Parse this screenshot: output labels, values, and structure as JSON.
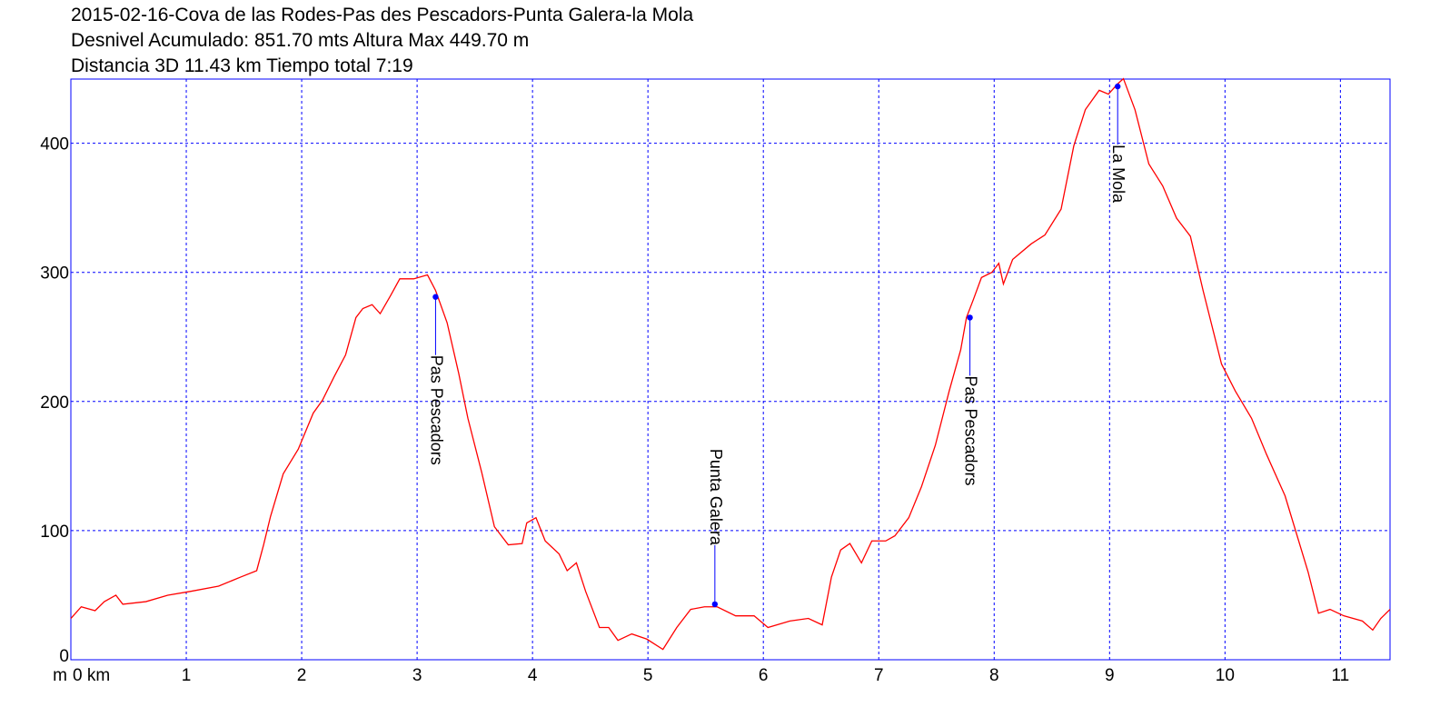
{
  "chart_data": {
    "type": "line",
    "title_lines": [
      "2015-02-16-Cova de las Rodes-Pas des Pescadors-Punta Galera-la Mola",
      "Desnivel Acumulado: 851.70 mts  Altura Max 449.70 m",
      "Distancia 3D 11.43 km  Tiempo total 7:19"
    ],
    "y_label": "m",
    "xlim": [
      0,
      11.43
    ],
    "ylim": [
      0,
      449.7
    ],
    "xticks": [
      {
        "value": 0,
        "label": "0 km"
      },
      1,
      2,
      3,
      4,
      5,
      6,
      7,
      8,
      9,
      10,
      11
    ],
    "yticks": [
      0,
      100,
      200,
      300,
      400
    ],
    "grid": true,
    "color": "#ff0000",
    "grid_color": "#0000ff",
    "series": [
      {
        "name": "Altura",
        "color": "#ff0000",
        "x": [
          0,
          0.09,
          0.21,
          0.29,
          0.39,
          0.45,
          0.65,
          0.84,
          1.04,
          1.28,
          1.47,
          1.61,
          1.67,
          1.73,
          1.84,
          1.97,
          2.1,
          2.18,
          2.28,
          2.38,
          2.47,
          2.53,
          2.61,
          2.68,
          2.77,
          2.85,
          2.97,
          3.09,
          3.16,
          3.26,
          3.36,
          3.44,
          3.56,
          3.67,
          3.79,
          3.91,
          3.95,
          4.03,
          4.11,
          4.23,
          4.3,
          4.38,
          4.46,
          4.58,
          4.66,
          4.74,
          4.86,
          4.99,
          5.13,
          5.25,
          5.37,
          5.49,
          5.6,
          5.76,
          5.92,
          6.04,
          6.23,
          6.39,
          6.51,
          6.59,
          6.67,
          6.75,
          6.85,
          6.94,
          7.06,
          7.14,
          7.26,
          7.37,
          7.49,
          7.61,
          7.71,
          7.76,
          7.82,
          7.89,
          7.98,
          8.04,
          8.08,
          8.16,
          8.32,
          8.44,
          8.58,
          8.69,
          8.79,
          8.91,
          8.99,
          9.07,
          9.12,
          9.22,
          9.34,
          9.46,
          9.58,
          9.7,
          9.81,
          9.97,
          10.09,
          10.23,
          10.36,
          10.52,
          10.72,
          10.81,
          10.91,
          11.03,
          11.19,
          11.28,
          11.35,
          11.43
        ],
        "values": [
          32,
          41,
          38,
          45,
          50,
          43,
          45,
          50,
          53,
          57,
          64,
          69,
          89,
          111,
          144,
          163,
          191,
          201,
          219,
          236,
          265,
          272,
          275,
          268,
          282,
          295,
          295,
          298,
          286,
          261,
          222,
          187,
          145,
          103,
          89,
          90,
          106,
          110,
          92,
          82,
          69,
          75,
          53,
          25,
          25,
          15,
          20,
          16,
          8,
          25,
          39,
          41,
          41,
          34,
          34,
          25,
          30,
          32,
          27,
          64,
          85,
          90,
          75,
          92,
          92,
          96,
          110,
          134,
          166,
          208,
          240,
          265,
          279,
          296,
          300,
          307,
          291,
          310,
          322,
          329,
          349,
          398,
          426,
          441,
          438,
          446,
          450,
          426,
          384,
          367,
          342,
          328,
          286,
          229,
          208,
          187,
          159,
          127,
          68,
          36,
          39,
          34,
          30,
          23,
          32,
          39
        ]
      }
    ],
    "waypoints": [
      {
        "label": "Pas Pescadors",
        "x": 3.16,
        "y": 281
      },
      {
        "label": "Punta Galera",
        "x": 5.58,
        "y": 43
      },
      {
        "label": "Pas Pescadors",
        "x": 7.79,
        "y": 265
      },
      {
        "label": "La Mola",
        "x": 9.07,
        "y": 444
      }
    ],
    "marker_color": "#0000ff"
  }
}
